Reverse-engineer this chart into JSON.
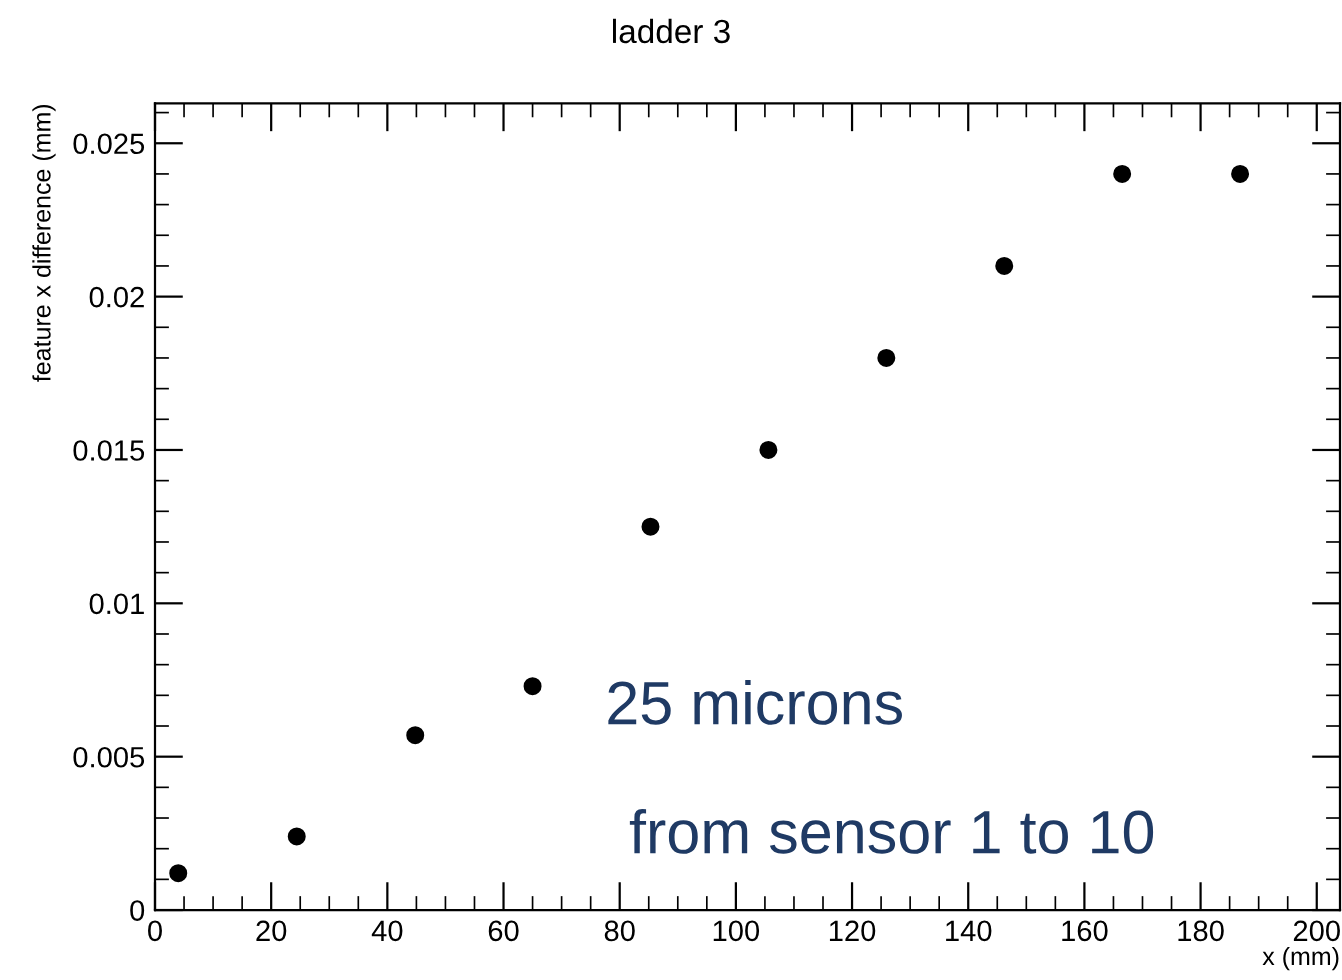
{
  "chart_data": {
    "type": "scatter",
    "title": "ladder 3",
    "xlabel": "x (mm)",
    "ylabel": "feature x difference (mm)",
    "x": [
      4,
      24.4,
      44.8,
      65,
      85.3,
      105.6,
      125.9,
      146.2,
      166.5,
      186.8
    ],
    "series": [
      {
        "color": "#000000",
        "values": [
          0.0012,
          0.0024,
          0.0057,
          0.0073,
          0.0125,
          0.015,
          0.018,
          0.021,
          0.024,
          0.024
        ]
      }
    ],
    "xlim": [
      0,
      204
    ],
    "xticks": [
      0,
      20,
      40,
      60,
      80,
      100,
      120,
      140,
      160,
      180,
      200
    ],
    "ylim": [
      0,
      0.0263
    ],
    "yticks": [
      0,
      0.005,
      0.01,
      0.015,
      0.02,
      0.025
    ],
    "marker": "circle",
    "grid": false,
    "legend": false,
    "annotations": [
      "25 microns",
      "from sensor 1 to 10"
    ]
  }
}
